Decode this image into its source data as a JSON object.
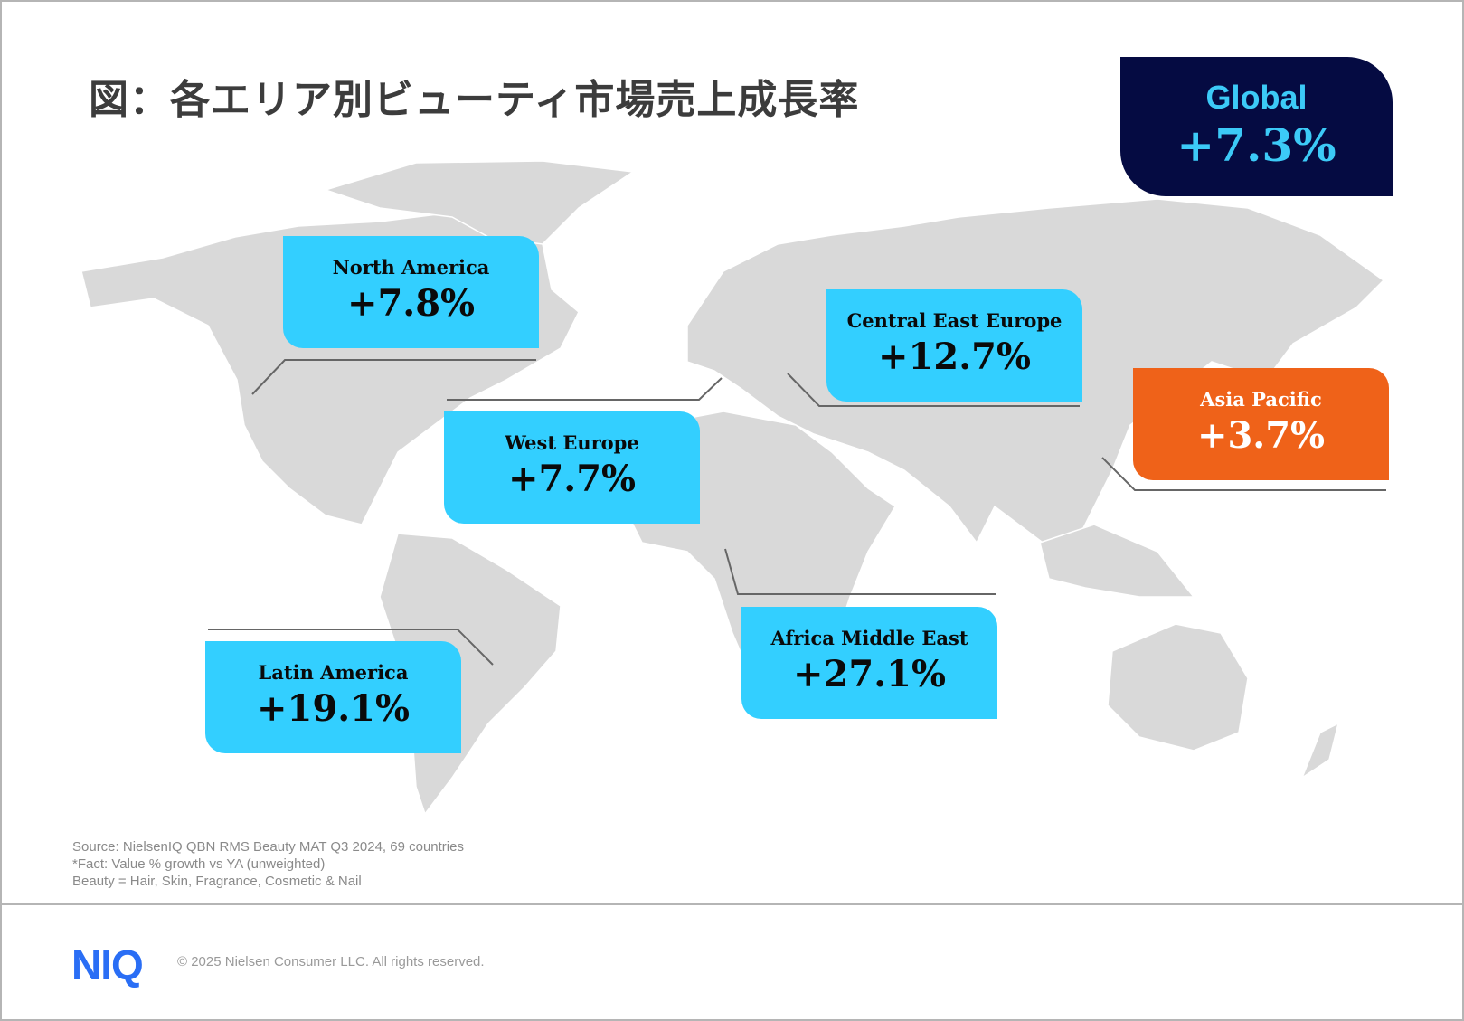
{
  "title": "図：各エリア別ビューティ市場売上成長率",
  "global": {
    "label": "Global",
    "value": "+7.3%",
    "color": "#050b42"
  },
  "regions": [
    {
      "label": "North America",
      "value": "+7.8%"
    },
    {
      "label": "Central East Europe",
      "value": "+12.7%"
    },
    {
      "label": "West Europe",
      "value": "+7.7%"
    },
    {
      "label": "Asia Pacific",
      "value": "+3.7%",
      "color": "#ef6219"
    },
    {
      "label": "Africa Middle East",
      "value": "+27.1%"
    },
    {
      "label": "Latin America",
      "value": "+19.1%"
    }
  ],
  "colors": {
    "region_box": "#33cfff",
    "highlight": "#ef6219",
    "map": "#d9d9d9"
  },
  "notes": [
    "Source: NielsenIQ QBN RMS Beauty MAT Q3 2024, 69 countries",
    "*Fact: Value % growth vs YA (unweighted)",
    "Beauty = Hair, Skin, Fragrance, Cosmetic & Nail"
  ],
  "footer": {
    "logo": "NIQ",
    "copyright": "© 2025 Nielsen Consumer LLC. All rights reserved."
  }
}
